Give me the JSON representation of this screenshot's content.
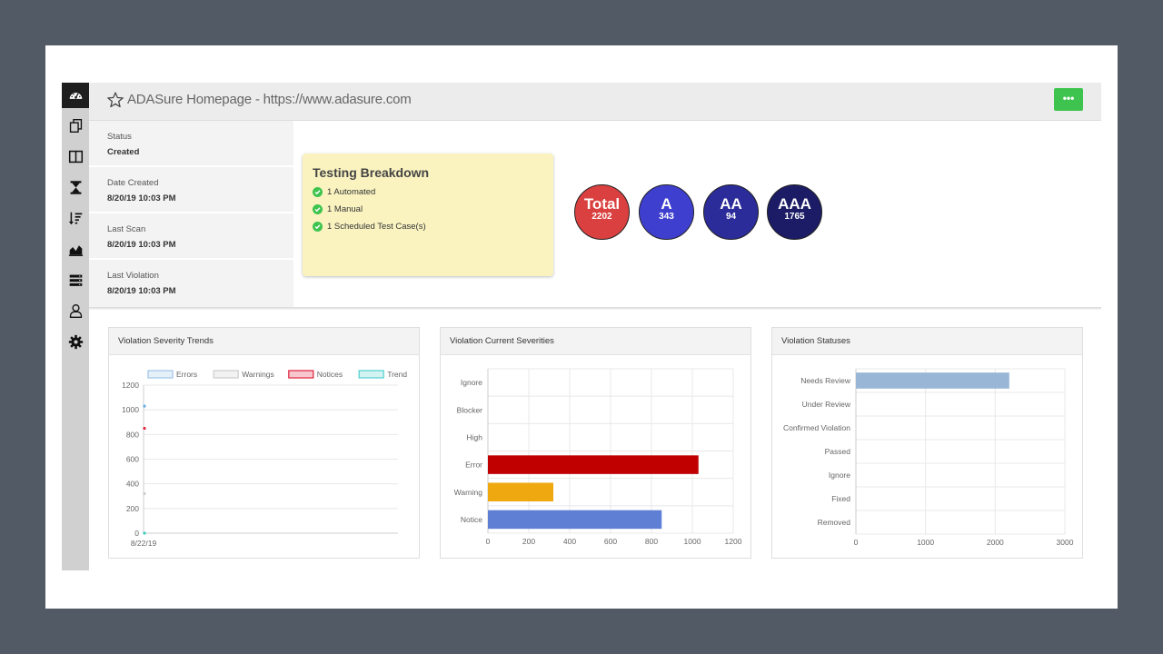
{
  "topbar": {
    "title": "ADASure Homepage - https://www.adasure.com",
    "menu_label": "•••",
    "accent": "#3ec44e"
  },
  "sidebar": {
    "icons": [
      "dashboard-icon",
      "copy-icon",
      "columns-icon",
      "hourglass-icon",
      "sort-icon",
      "area-chart-icon",
      "server-icon",
      "user-icon",
      "gear-icon"
    ]
  },
  "info": [
    {
      "label": "Status",
      "value": "Created"
    },
    {
      "label": "Date Created",
      "value": "8/20/19 10:03 PM"
    },
    {
      "label": "Last Scan",
      "value": "8/20/19 10:03 PM"
    },
    {
      "label": "Last Violation",
      "value": "8/20/19 10:03 PM"
    }
  ],
  "breakdown": {
    "title": "Testing Breakdown",
    "items": [
      "1 Automated",
      "1 Manual",
      "1 Scheduled Test Case(s)"
    ]
  },
  "totals": [
    {
      "label": "Total",
      "value": "2202",
      "color": "#d9403f"
    },
    {
      "label": "A",
      "value": "343",
      "color": "#3f3fcf"
    },
    {
      "label": "AA",
      "value": "94",
      "color": "#2b2b9a"
    },
    {
      "label": "AAA",
      "value": "1765",
      "color": "#1c1c66"
    }
  ],
  "panels": {
    "trends": {
      "title": "Violation Severity Trends"
    },
    "severities": {
      "title": "Violation Current Severities"
    },
    "statuses": {
      "title": "Violation Statuses"
    }
  },
  "chart_data": [
    {
      "type": "line",
      "title": "Violation Severity Trends",
      "legend": [
        "Errors",
        "Warnings",
        "Notices",
        "Trend"
      ],
      "legend_colors": [
        "#9dc3e8",
        "#cccccc",
        "#e0213b",
        "#4fcfd0"
      ],
      "categories": [
        "8/22/19"
      ],
      "series": [
        {
          "name": "Errors",
          "values": [
            1030
          ],
          "color": "#6aaee0"
        },
        {
          "name": "Notices",
          "values": [
            850
          ],
          "color": "#e0213b"
        },
        {
          "name": "Warnings",
          "values": [
            320
          ],
          "color": "#cccccc"
        },
        {
          "name": "Trend",
          "values": [
            0
          ],
          "color": "#3ccfc0"
        }
      ],
      "ylim": [
        0,
        1200
      ],
      "yticks": [
        0,
        200,
        400,
        600,
        800,
        1000,
        1200
      ]
    },
    {
      "type": "bar",
      "title": "Violation Current Severities",
      "orientation": "horizontal",
      "categories": [
        "Ignore",
        "Blocker",
        "High",
        "Error",
        "Warning",
        "Notice"
      ],
      "values": [
        0,
        0,
        0,
        1030,
        320,
        850
      ],
      "colors": [
        "#888888",
        "#888888",
        "#888888",
        "#c00000",
        "#f0a810",
        "#5e7fd4"
      ],
      "xlim": [
        0,
        1200
      ],
      "xticks": [
        0,
        200,
        400,
        600,
        800,
        1000,
        1200
      ]
    },
    {
      "type": "bar",
      "title": "Violation Statuses",
      "orientation": "horizontal",
      "categories": [
        "Needs Review",
        "Under Review",
        "Confirmed Violation",
        "Passed",
        "Ignore",
        "Fixed",
        "Removed"
      ],
      "values": [
        2202,
        0,
        0,
        0,
        0,
        0,
        0
      ],
      "colors": [
        "#9ab6d6",
        "#9ab6d6",
        "#9ab6d6",
        "#9ab6d6",
        "#9ab6d6",
        "#9ab6d6",
        "#9ab6d6"
      ],
      "xlim": [
        0,
        3000
      ],
      "xticks": [
        0,
        1000,
        2000,
        3000
      ]
    }
  ]
}
